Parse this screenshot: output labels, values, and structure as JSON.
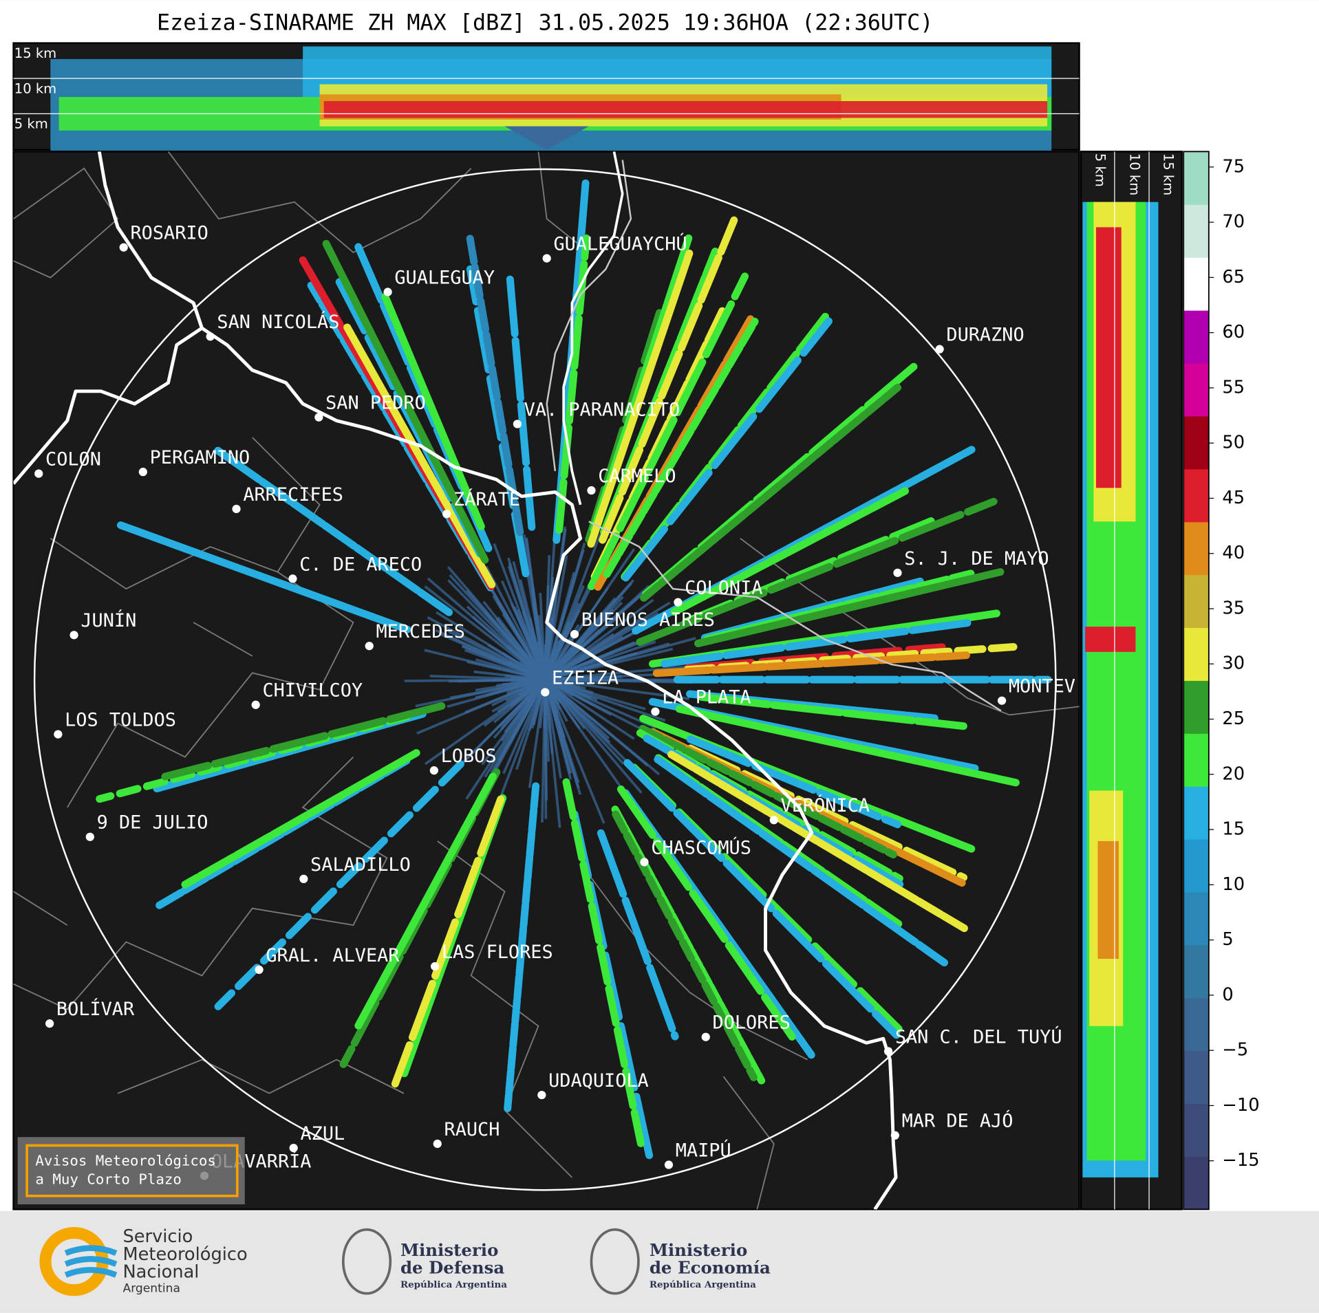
{
  "title": "Ezeiza-SINARAME ZH MAX [dBZ] 31.05.2025 19:36HOA (22:36UTC)",
  "top_panel": {
    "height_labels": [
      "15 km",
      "10 km",
      "5 km"
    ]
  },
  "side_panel": {
    "height_labels": [
      "5 km",
      "10 km",
      "15 km"
    ]
  },
  "cities": [
    "ROSARIO",
    "GUALEGUAYCHÚ",
    "GUALEGUAY",
    "SAN NICOLÁS",
    "DURAZNO",
    "SAN PEDRO",
    "VA. PARANACITO",
    "COLON",
    "PERGAMINO",
    "CARMELO",
    "ARRECIFES",
    "ZÁRATE",
    "C. DE ARECO",
    "S. J. DE MAYO",
    "COLONIA",
    "JUNÍN",
    "BUENOS AIRES",
    "MERCEDES",
    "EZEIZA",
    "MONTEV",
    "CHIVILCOY",
    "LA PLATA",
    "LOS TOLDOS",
    "LOBOS",
    "VERÓNICA",
    "9 DE JULIO",
    "CHASCOMÚS",
    "SALADILLO",
    "GRAL. ALVEAR",
    "LAS FLORES",
    "BOLÍVAR",
    "DOLORES",
    "SAN C. DEL TUYÚ",
    "UDAQUIOLA",
    "MAR DE AJÓ",
    "AZUL",
    "RAUCH",
    "OLAVARRÍA",
    "MAIPÚ"
  ],
  "warning_box": [
    "Avisos Meteorológicos",
    "a Muy Corto Plazo"
  ],
  "colorbar": {
    "lim": [
      -19.4,
      76.4
    ],
    "ticks": [
      75,
      70,
      65,
      60,
      55,
      50,
      45,
      40,
      35,
      30,
      25,
      20,
      15,
      10,
      5,
      0,
      {
        "value": -5,
        "label": "−5"
      },
      {
        "value": -10,
        "label": "−10"
      },
      {
        "value": -15,
        "label": "−15"
      }
    ],
    "colors": [
      "#3b3f6e",
      "#3e4c7c",
      "#3e5a88",
      "#3a6894",
      "#33789f",
      "#2b88b8",
      "#2399cf",
      "#26afe0",
      "#3ee83a",
      "#2f9e2a",
      "#e8e83a",
      "#c8b432",
      "#e08c1a",
      "#dc1e2d",
      "#9e0016",
      "#d4009a",
      "#b000b0",
      "#ffffff",
      "#cde8dc",
      "#9edcc4"
    ]
  },
  "logos": {
    "smn": [
      "Servicio",
      "Meteorológico",
      "Nacional",
      "Argentina"
    ],
    "defensa": [
      "Ministerio",
      "de Defensa",
      "República Argentina"
    ],
    "economia": [
      "Ministerio",
      "de Economía",
      "República Argentina"
    ]
  }
}
